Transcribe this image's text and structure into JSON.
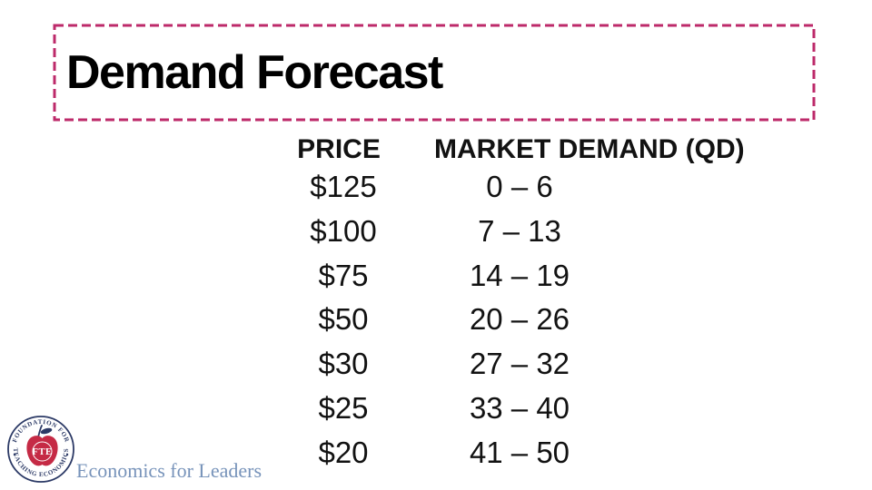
{
  "title": "Demand Forecast",
  "table": {
    "headers": [
      "PRICE",
      "MARKET DEMAND (QD)"
    ],
    "rows": [
      {
        "price": "$125",
        "demand": "0 – 6"
      },
      {
        "price": "$100",
        "demand": "7 – 13"
      },
      {
        "price": "$75",
        "demand": "14 – 19"
      },
      {
        "price": "$50",
        "demand": "20 – 26"
      },
      {
        "price": "$30",
        "demand": "27 – 32"
      },
      {
        "price": "$25",
        "demand": "33 – 40"
      },
      {
        "price": "$20",
        "demand": "41 – 50"
      }
    ]
  },
  "logo": {
    "seal_text_top": "FOUNDATION FOR",
    "seal_text_bottom": "TEACHING ECONOMICS",
    "seal_monogram": "FTE",
    "tagline": "Economics for Leaders"
  },
  "colors": {
    "title_border_pink": "#bd2a6a",
    "title_text": "#000000",
    "table_text": "#121212",
    "seal_navy": "#2c3a66",
    "apple_red": "#c52a45",
    "tagline_blue": "#7793ba"
  }
}
